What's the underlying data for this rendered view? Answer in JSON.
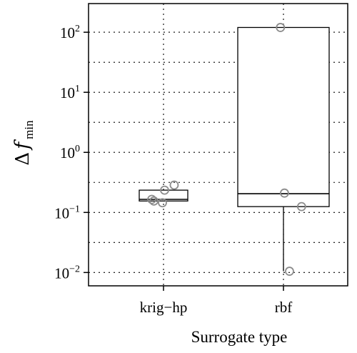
{
  "chart_data": {
    "type": "box",
    "xlabel": "Surrogate type",
    "ylabel": {
      "delta": "Δ",
      "var": "f",
      "sub": "min"
    },
    "yscale": "log",
    "ylim": [
      0.006,
      300
    ],
    "yticks": [
      {
        "value": 0.01,
        "base": "10",
        "exp": "−2"
      },
      {
        "value": 0.1,
        "base": "10",
        "exp": "−1"
      },
      {
        "value": 1,
        "base": "10",
        "exp": "0"
      },
      {
        "value": 10,
        "base": "10",
        "exp": "1"
      },
      {
        "value": 100,
        "base": "10",
        "exp": "2"
      }
    ],
    "grid": true,
    "categories": [
      "krig−hp",
      "rbf"
    ],
    "boxes": [
      {
        "category": "krig−hp",
        "whisker_low": 0.155,
        "q1": 0.155,
        "median": 0.165,
        "q3": 0.235,
        "whisker_high": 0.235,
        "points": [
          {
            "jitter": -0.22,
            "value": 0.165
          },
          {
            "jitter": -0.18,
            "value": 0.155
          },
          {
            "jitter": -0.02,
            "value": 0.145
          },
          {
            "jitter": 0.02,
            "value": 0.235
          },
          {
            "jitter": 0.2,
            "value": 0.285
          }
        ]
      },
      {
        "category": "rbf",
        "whisker_low": 0.0105,
        "q1": 0.125,
        "median": 0.205,
        "q3": 120,
        "whisker_high": 120,
        "points": [
          {
            "jitter": -0.03,
            "value": 120
          },
          {
            "jitter": 0.01,
            "value": 0.21
          },
          {
            "jitter": 0.18,
            "value": 0.125
          },
          {
            "jitter": 0.06,
            "value": 0.0105
          }
        ]
      }
    ]
  }
}
